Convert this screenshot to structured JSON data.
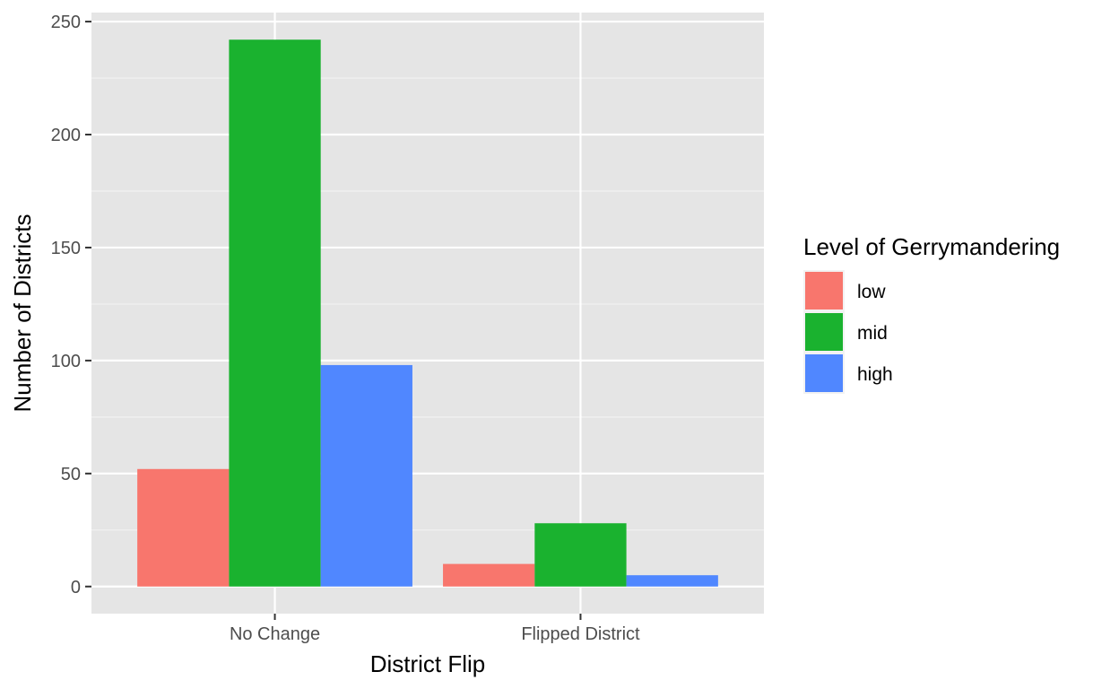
{
  "chart_data": {
    "type": "bar",
    "title": "",
    "xlabel": "District Flip",
    "ylabel": "Number of Districts",
    "categories": [
      "No Change",
      "Flipped District"
    ],
    "series": [
      {
        "name": "low",
        "values": [
          52,
          10
        ],
        "color": "#f8766d"
      },
      {
        "name": "mid",
        "values": [
          242,
          28
        ],
        "color": "#1ab22f"
      },
      {
        "name": "high",
        "values": [
          98,
          5
        ],
        "color": "#5087ff"
      }
    ],
    "ylim": [
      -12,
      254
    ],
    "yticks": [
      0,
      50,
      100,
      150,
      200,
      250
    ],
    "legend": {
      "title": "Level of Gerrymandering",
      "position": "right"
    },
    "grid": true,
    "panel_background": "#e5e5e5"
  }
}
